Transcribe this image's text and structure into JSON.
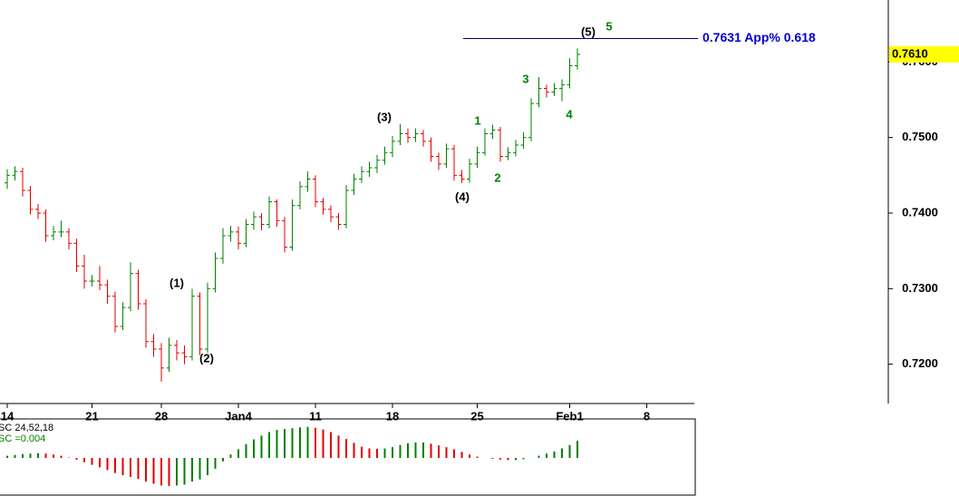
{
  "chart_data": {
    "type": "ohlc",
    "categories": [
      "14",
      null,
      null,
      null,
      null,
      null,
      null,
      null,
      null,
      null,
      null,
      "21",
      null,
      null,
      null,
      null,
      null,
      null,
      null,
      null,
      "28",
      null,
      null,
      null,
      null,
      null,
      null,
      null,
      null,
      null,
      "Jan4",
      null,
      null,
      null,
      null,
      null,
      null,
      null,
      null,
      null,
      "11",
      null,
      null,
      null,
      null,
      null,
      null,
      null,
      null,
      null,
      "18",
      null,
      null,
      null,
      null,
      null,
      null,
      null,
      null,
      null,
      null,
      "25",
      null,
      null,
      null,
      null,
      null,
      null,
      null,
      null,
      null,
      null,
      null,
      "Feb1",
      null,
      null,
      null,
      null,
      null,
      null,
      null,
      null,
      null,
      "8"
    ],
    "open": [
      0.744,
      0.745,
      0.7455,
      0.743,
      0.7405,
      0.74,
      0.737,
      0.7375,
      0.7375,
      0.736,
      0.733,
      0.731,
      0.731,
      0.7305,
      0.729,
      0.725,
      0.7275,
      0.732,
      0.728,
      0.723,
      0.722,
      0.7195,
      0.7225,
      0.7215,
      0.721,
      0.729,
      0.722,
      0.73,
      0.734,
      0.737,
      0.7375,
      0.736,
      0.7385,
      0.7395,
      0.7385,
      0.7415,
      0.739,
      0.7355,
      0.741,
      0.7435,
      0.7445,
      0.7415,
      0.7405,
      0.7395,
      0.7385,
      0.743,
      0.7445,
      0.7455,
      0.746,
      0.747,
      0.748,
      0.7495,
      0.7505,
      0.75,
      0.7505,
      0.7495,
      0.7475,
      0.7465,
      0.7485,
      0.745,
      0.7445,
      0.7465,
      0.748,
      0.7505,
      0.751,
      0.7475,
      0.748,
      0.749,
      0.75,
      0.7545,
      0.7565,
      0.756,
      0.7565,
      0.757,
      0.7595,
      null,
      null,
      null,
      null,
      null,
      null,
      null,
      null,
      null
    ],
    "high": [
      0.7458,
      0.7462,
      0.746,
      0.7436,
      0.7412,
      0.7405,
      0.7383,
      0.739,
      0.738,
      0.7366,
      0.7345,
      0.7318,
      0.733,
      0.7312,
      0.7296,
      0.7282,
      0.7335,
      0.7325,
      0.7286,
      0.724,
      0.7228,
      0.7235,
      0.7232,
      0.7225,
      0.73,
      0.7295,
      0.7308,
      0.7348,
      0.738,
      0.7383,
      0.7382,
      0.7392,
      0.7402,
      0.74,
      0.7422,
      0.7418,
      0.7395,
      0.7418,
      0.7442,
      0.7455,
      0.745,
      0.742,
      0.741,
      0.74,
      0.7437,
      0.7452,
      0.7462,
      0.7468,
      0.7477,
      0.7488,
      0.7502,
      0.7518,
      0.7512,
      0.7512,
      0.751,
      0.75,
      0.748,
      0.7492,
      0.749,
      0.7457,
      0.7472,
      0.7488,
      0.7512,
      0.7517,
      0.7514,
      0.7487,
      0.7497,
      0.7507,
      0.7552,
      0.758,
      0.757,
      0.7572,
      0.7577,
      0.7605,
      0.7618,
      null,
      null,
      null,
      null,
      null,
      null,
      null,
      null,
      null
    ],
    "low": [
      0.7432,
      0.7443,
      0.7422,
      0.7398,
      0.7392,
      0.7362,
      0.7364,
      0.7368,
      0.7352,
      0.7322,
      0.73,
      0.7303,
      0.7298,
      0.728,
      0.7242,
      0.7245,
      0.727,
      0.7272,
      0.7222,
      0.721,
      0.7177,
      0.719,
      0.7205,
      0.72,
      0.7205,
      0.7212,
      0.7215,
      0.7295,
      0.7333,
      0.7362,
      0.7352,
      0.7355,
      0.7378,
      0.7377,
      0.738,
      0.7382,
      0.7348,
      0.735,
      0.7405,
      0.7428,
      0.7408,
      0.7398,
      0.7388,
      0.7378,
      0.738,
      0.7424,
      0.744,
      0.7448,
      0.7453,
      0.7464,
      0.7474,
      0.749,
      0.7493,
      0.7494,
      0.7488,
      0.7468,
      0.7457,
      0.746,
      0.7443,
      0.744,
      0.744,
      0.746,
      0.7476,
      0.7498,
      0.7468,
      0.747,
      0.7475,
      0.7485,
      0.7495,
      0.754,
      0.7553,
      0.7555,
      0.7548,
      0.7565,
      0.759,
      null,
      null,
      null,
      null,
      null,
      null,
      null,
      null,
      null
    ],
    "close": [
      0.745,
      0.7455,
      0.743,
      0.7405,
      0.74,
      0.737,
      0.7375,
      0.7375,
      0.736,
      0.733,
      0.731,
      0.731,
      0.7305,
      0.729,
      0.725,
      0.7275,
      0.732,
      0.728,
      0.723,
      0.722,
      0.7195,
      0.7225,
      0.7215,
      0.721,
      0.729,
      0.722,
      0.73,
      0.734,
      0.737,
      0.7375,
      0.736,
      0.7385,
      0.7395,
      0.7385,
      0.7415,
      0.739,
      0.7355,
      0.741,
      0.7435,
      0.7445,
      0.7415,
      0.7405,
      0.7395,
      0.7385,
      0.743,
      0.7445,
      0.7455,
      0.746,
      0.747,
      0.748,
      0.7495,
      0.7505,
      0.75,
      0.7505,
      0.7495,
      0.7475,
      0.7465,
      0.7485,
      0.745,
      0.7445,
      0.7465,
      0.748,
      0.7505,
      0.751,
      0.7475,
      0.748,
      0.749,
      0.75,
      0.7545,
      0.7565,
      0.756,
      0.7565,
      0.757,
      0.7595,
      0.761,
      null,
      null,
      null,
      null,
      null,
      null,
      null,
      null,
      null
    ],
    "up_color": "#008000",
    "down_color": "#e00000",
    "ylim": [
      0.7148,
      0.7682
    ],
    "yticks": [
      {
        "value": 0.72,
        "label": "0.7200"
      },
      {
        "value": 0.73,
        "label": "0.7300"
      },
      {
        "value": 0.74,
        "label": "0.7400"
      },
      {
        "value": 0.75,
        "label": "0.7500"
      },
      {
        "value": 0.76,
        "label": "0.7600"
      }
    ],
    "level": {
      "value": 0.7631,
      "label": "0.7631 App% 0.618",
      "color": "#0000cc"
    },
    "last_price": {
      "value": 0.761,
      "label": "0.7610",
      "color": "#ffff00"
    },
    "annotations": [
      {
        "text": "(1)",
        "color": "#000000"
      },
      {
        "text": "(2)",
        "color": "#000000"
      },
      {
        "text": "(3)",
        "color": "#000000"
      },
      {
        "text": "(4)",
        "color": "#000000"
      },
      {
        "text": "(5)",
        "color": "#000000"
      },
      {
        "text": "5",
        "color": "#008000"
      },
      {
        "text": "1",
        "color": "#008000"
      },
      {
        "text": "2",
        "color": "#008000"
      },
      {
        "text": "3",
        "color": "#008000"
      },
      {
        "text": "4",
        "color": "#008000"
      }
    ],
    "oscillator": {
      "label": "SC 24,52,18",
      "readout": "SC =0.004",
      "ylim": [
        -0.008,
        0.008
      ],
      "values": [
        0.0005,
        0.0007,
        0.0009,
        0.001,
        0.0011,
        0.001,
        0.0008,
        0.0005,
        0.0001,
        -0.0004,
        -0.001,
        -0.0016,
        -0.0022,
        -0.0028,
        -0.0035,
        -0.004,
        -0.0044,
        -0.0049,
        -0.0055,
        -0.006,
        -0.0064,
        -0.0065,
        -0.0064,
        -0.0062,
        -0.0055,
        -0.005,
        -0.004,
        -0.0025,
        -0.0008,
        0.0008,
        0.002,
        0.0032,
        0.0043,
        0.0052,
        0.006,
        0.0065,
        0.0067,
        0.0069,
        0.0071,
        0.0072,
        0.007,
        0.0066,
        0.006,
        0.0052,
        0.0044,
        0.0035,
        0.0026,
        0.0022,
        0.0021,
        0.0022,
        0.0025,
        0.003,
        0.0034,
        0.0036,
        0.0036,
        0.0033,
        0.0029,
        0.0025,
        0.002,
        0.0014,
        0.0008,
        0.0003,
        0.0,
        -0.0002,
        -0.0004,
        -0.0005,
        -0.0005,
        -0.0003,
        0.0,
        0.0005,
        0.001,
        0.0015,
        0.0022,
        0.003,
        0.004,
        null,
        null,
        null,
        null,
        null,
        null,
        null,
        null,
        null
      ]
    }
  }
}
